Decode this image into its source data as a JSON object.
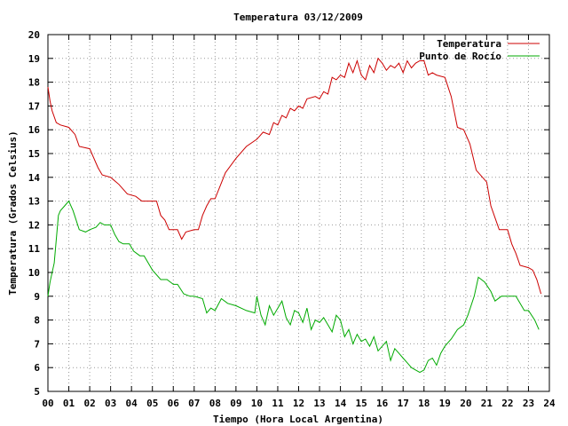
{
  "chart_data": {
    "type": "line",
    "title": "Temperatura 03/12/2009",
    "xlabel": "Tiempo (Hora Local Argentina)",
    "ylabel": "Temperatura (Grados Celsius)",
    "xlim": [
      0,
      24
    ],
    "ylim": [
      5,
      20
    ],
    "grid": true,
    "legend_position": "top-right",
    "x_ticks": [
      "00",
      "01",
      "02",
      "03",
      "04",
      "05",
      "06",
      "07",
      "08",
      "09",
      "10",
      "11",
      "12",
      "13",
      "14",
      "15",
      "16",
      "17",
      "18",
      "19",
      "20",
      "21",
      "22",
      "23",
      "24"
    ],
    "y_ticks": [
      "5",
      "6",
      "7",
      "8",
      "9",
      "10",
      "11",
      "12",
      "13",
      "14",
      "15",
      "16",
      "17",
      "18",
      "19",
      "20"
    ],
    "series": [
      {
        "name": "Temperatura",
        "color": "#cc0000",
        "x": [
          0,
          0.1,
          0.2,
          0.4,
          0.6,
          1.0,
          1.3,
          1.5,
          2.0,
          2.4,
          2.6,
          3.0,
          3.4,
          3.8,
          4.2,
          4.5,
          4.8,
          5.2,
          5.4,
          5.6,
          5.8,
          6.2,
          6.4,
          6.6,
          7.0,
          7.2,
          7.4,
          7.6,
          7.8,
          8.0,
          8.5,
          9.0,
          9.5,
          10.0,
          10.3,
          10.6,
          10.8,
          11.0,
          11.2,
          11.4,
          11.6,
          11.8,
          12.0,
          12.2,
          12.4,
          12.8,
          13.0,
          13.2,
          13.4,
          13.6,
          13.8,
          14.0,
          14.2,
          14.4,
          14.6,
          14.8,
          15.0,
          15.2,
          15.4,
          15.6,
          15.8,
          16.0,
          16.2,
          16.4,
          16.6,
          16.8,
          17.0,
          17.2,
          17.4,
          17.6,
          17.8,
          18.0,
          18.2,
          18.4,
          18.6,
          19.0,
          19.3,
          19.6,
          19.9,
          20.2,
          20.5,
          20.8,
          21.0,
          21.2,
          21.4,
          21.6,
          22.0,
          22.2,
          22.4,
          22.6,
          23.0,
          23.2,
          23.4,
          23.6
        ],
        "values": [
          17.8,
          17.2,
          16.8,
          16.3,
          16.2,
          16.1,
          15.8,
          15.3,
          15.2,
          14.4,
          14.1,
          14.0,
          13.7,
          13.3,
          13.2,
          13.0,
          13.0,
          13.0,
          12.4,
          12.2,
          11.8,
          11.8,
          11.4,
          11.7,
          11.8,
          11.8,
          12.4,
          12.8,
          13.1,
          13.1,
          14.2,
          14.8,
          15.3,
          15.6,
          15.9,
          15.8,
          16.3,
          16.2,
          16.6,
          16.5,
          16.9,
          16.8,
          17.0,
          16.9,
          17.3,
          17.4,
          17.3,
          17.6,
          17.5,
          18.2,
          18.1,
          18.3,
          18.2,
          18.8,
          18.4,
          18.9,
          18.3,
          18.1,
          18.7,
          18.4,
          19.0,
          18.8,
          18.5,
          18.7,
          18.6,
          18.8,
          18.4,
          18.9,
          18.6,
          18.8,
          18.9,
          18.9,
          18.3,
          18.4,
          18.3,
          18.2,
          17.4,
          16.1,
          16.0,
          15.4,
          14.3,
          14.0,
          13.8,
          12.8,
          12.3,
          11.8,
          11.8,
          11.2,
          10.8,
          10.3,
          10.2,
          10.1,
          9.7,
          9.1
        ]
      },
      {
        "name": "Punto de Rocío",
        "color": "#00aa00",
        "x": [
          0,
          0.1,
          0.3,
          0.5,
          0.6,
          0.8,
          1.0,
          1.2,
          1.5,
          1.8,
          2.0,
          2.3,
          2.5,
          2.7,
          3.0,
          3.2,
          3.4,
          3.6,
          3.9,
          4.1,
          4.4,
          4.6,
          4.8,
          5.0,
          5.4,
          5.7,
          6.0,
          6.2,
          6.5,
          6.8,
          7.0,
          7.4,
          7.6,
          7.8,
          8.0,
          8.3,
          8.6,
          9.0,
          9.5,
          9.9,
          10.0,
          10.2,
          10.4,
          10.6,
          10.8,
          11.0,
          11.2,
          11.4,
          11.6,
          11.8,
          12.0,
          12.2,
          12.4,
          12.6,
          12.8,
          13.0,
          13.2,
          13.4,
          13.6,
          13.8,
          14.0,
          14.2,
          14.4,
          14.6,
          14.8,
          15.0,
          15.2,
          15.4,
          15.6,
          15.8,
          16.0,
          16.2,
          16.4,
          16.6,
          16.8,
          17.0,
          17.2,
          17.4,
          17.6,
          17.8,
          18.0,
          18.2,
          18.4,
          18.6,
          18.8,
          19.0,
          19.3,
          19.6,
          19.9,
          20.1,
          20.4,
          20.6,
          20.9,
          21.2,
          21.4,
          21.7,
          22.0,
          22.4,
          22.8,
          23.0,
          23.3,
          23.5
        ],
        "values": [
          9.0,
          9.6,
          10.4,
          12.4,
          12.6,
          12.8,
          13.0,
          12.6,
          11.8,
          11.7,
          11.8,
          11.9,
          12.1,
          12.0,
          12.0,
          11.6,
          11.3,
          11.2,
          11.2,
          10.9,
          10.7,
          10.7,
          10.4,
          10.1,
          9.7,
          9.7,
          9.5,
          9.5,
          9.1,
          9.0,
          9.0,
          8.9,
          8.3,
          8.5,
          8.4,
          8.9,
          8.7,
          8.6,
          8.4,
          8.3,
          9.0,
          8.2,
          7.8,
          8.6,
          8.2,
          8.5,
          8.8,
          8.1,
          7.8,
          8.4,
          8.3,
          7.9,
          8.5,
          7.6,
          8.0,
          7.9,
          8.1,
          7.8,
          7.5,
          8.2,
          8.0,
          7.3,
          7.6,
          7.0,
          7.4,
          7.1,
          7.2,
          6.9,
          7.3,
          6.7,
          6.9,
          7.1,
          6.3,
          6.8,
          6.6,
          6.4,
          6.2,
          6.0,
          5.9,
          5.8,
          5.9,
          6.3,
          6.4,
          6.1,
          6.6,
          6.9,
          7.2,
          7.6,
          7.8,
          8.2,
          9.0,
          9.8,
          9.6,
          9.2,
          8.8,
          9.0,
          9.0,
          9.0,
          8.4,
          8.4,
          8.0,
          7.6
        ]
      }
    ]
  }
}
